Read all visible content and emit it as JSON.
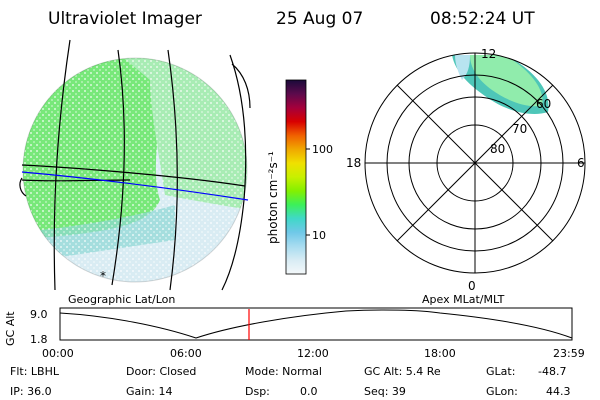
{
  "header": {
    "instrument": "Ultraviolet Imager",
    "date": "25 Aug 07",
    "time": "08:52:24 UT"
  },
  "colorbar": {
    "units_label": "photon cm⁻²s⁻¹",
    "ticks": [
      "100",
      "10"
    ],
    "colors": [
      "#1a0a3a",
      "#5c0a4c",
      "#a4003c",
      "#d80000",
      "#f06000",
      "#f0a800",
      "#f0e000",
      "#c8f000",
      "#84f000",
      "#3cf05a",
      "#40d8c8",
      "#70c8e8",
      "#a8dcf0",
      "#d8ecf4",
      "#f4f8fa"
    ]
  },
  "left_panel": {
    "caption": "Geographic Lat/Lon",
    "marker": "*"
  },
  "right_panel": {
    "caption": "Apex MLat/MLT",
    "mlt_labels": {
      "top": "12",
      "left": "18",
      "right": "6",
      "bottom": "0"
    },
    "mlat_labels": [
      "60",
      "70",
      "80"
    ]
  },
  "timeline": {
    "ylabel": "GC Alt",
    "y_ticks": [
      "9.0",
      "1.8"
    ],
    "x_ticks": [
      "00:00",
      "06:00",
      "12:00",
      "18:00",
      "23:59"
    ],
    "cursor_color": "#ff0000"
  },
  "info": {
    "flt": "Flt: LBHL",
    "ip": "IP: 36.0",
    "door": "Door: Closed",
    "gain": "Gain: 14",
    "mode": "Mode: Normal",
    "dsp_label": "Dsp:",
    "dsp_value": "0.0",
    "gc_alt": "GC Alt: 5.4 Re",
    "seq": "Seq: 39",
    "glat_label": "GLat:",
    "glat_value": "-48.7",
    "glon_label": "GLon:",
    "glon_value": "44.3"
  }
}
